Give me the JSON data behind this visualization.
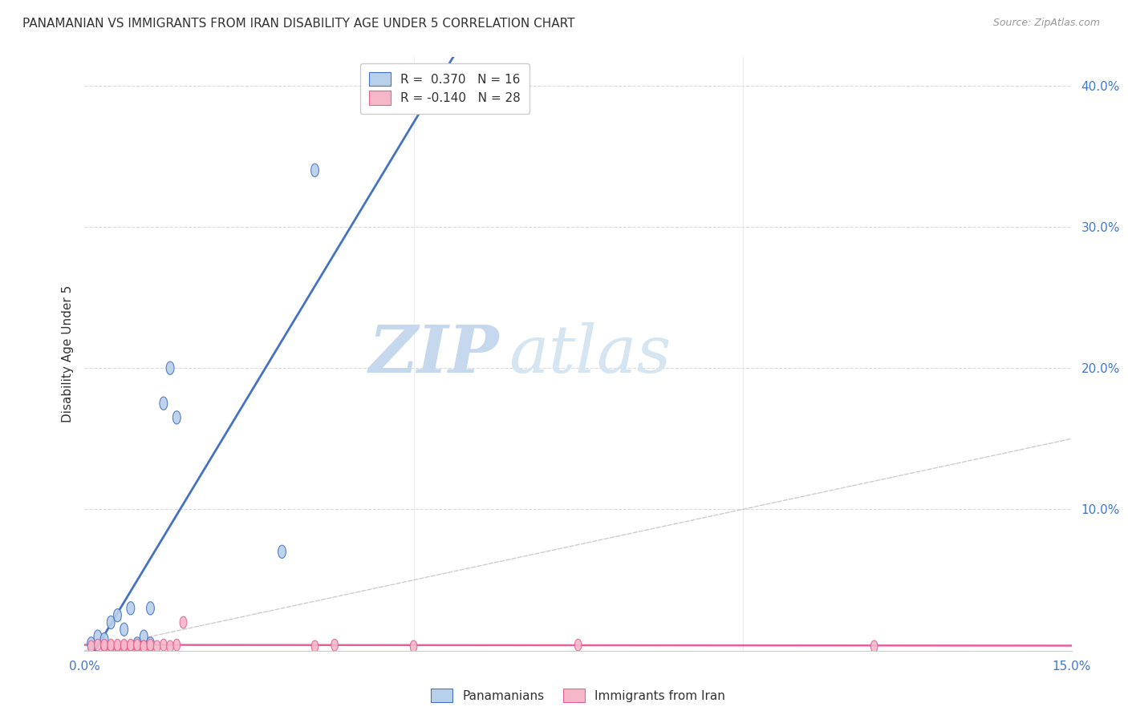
{
  "title": "PANAMANIAN VS IMMIGRANTS FROM IRAN DISABILITY AGE UNDER 5 CORRELATION CHART",
  "source": "Source: ZipAtlas.com",
  "ylabel_label": "Disability Age Under 5",
  "xlim": [
    0.0,
    0.15
  ],
  "ylim": [
    0.0,
    0.42
  ],
  "blue_r": 0.37,
  "pink_r": -0.14,
  "blue_n": 16,
  "pink_n": 28,
  "panamanian_x": [
    0.001,
    0.002,
    0.003,
    0.004,
    0.005,
    0.006,
    0.007,
    0.008,
    0.009,
    0.01,
    0.01,
    0.012,
    0.013,
    0.014,
    0.03,
    0.035
  ],
  "panamanian_y": [
    0.005,
    0.01,
    0.008,
    0.02,
    0.025,
    0.015,
    0.03,
    0.005,
    0.01,
    0.005,
    0.03,
    0.175,
    0.2,
    0.165,
    0.07,
    0.34
  ],
  "iran_x": [
    0.001,
    0.002,
    0.003,
    0.003,
    0.004,
    0.004,
    0.005,
    0.005,
    0.006,
    0.006,
    0.007,
    0.007,
    0.008,
    0.008,
    0.009,
    0.009,
    0.01,
    0.01,
    0.011,
    0.012,
    0.013,
    0.014,
    0.015,
    0.035,
    0.038,
    0.05,
    0.075,
    0.12
  ],
  "iran_y": [
    0.003,
    0.004,
    0.003,
    0.004,
    0.003,
    0.004,
    0.003,
    0.004,
    0.003,
    0.004,
    0.003,
    0.004,
    0.003,
    0.004,
    0.003,
    0.003,
    0.003,
    0.004,
    0.003,
    0.004,
    0.003,
    0.004,
    0.02,
    0.003,
    0.004,
    0.003,
    0.004,
    0.003
  ],
  "blue_color": "#b8d0ea",
  "pink_color": "#f5b8c8",
  "blue_line_color": "#4472c4",
  "pink_line_color": "#e8609a",
  "diagonal_color": "#c8c8c8",
  "watermark_zip_color": "#c8ddf0",
  "watermark_atlas_color": "#d8e8f5",
  "background_color": "#ffffff",
  "grid_color": "#d8d8d8"
}
